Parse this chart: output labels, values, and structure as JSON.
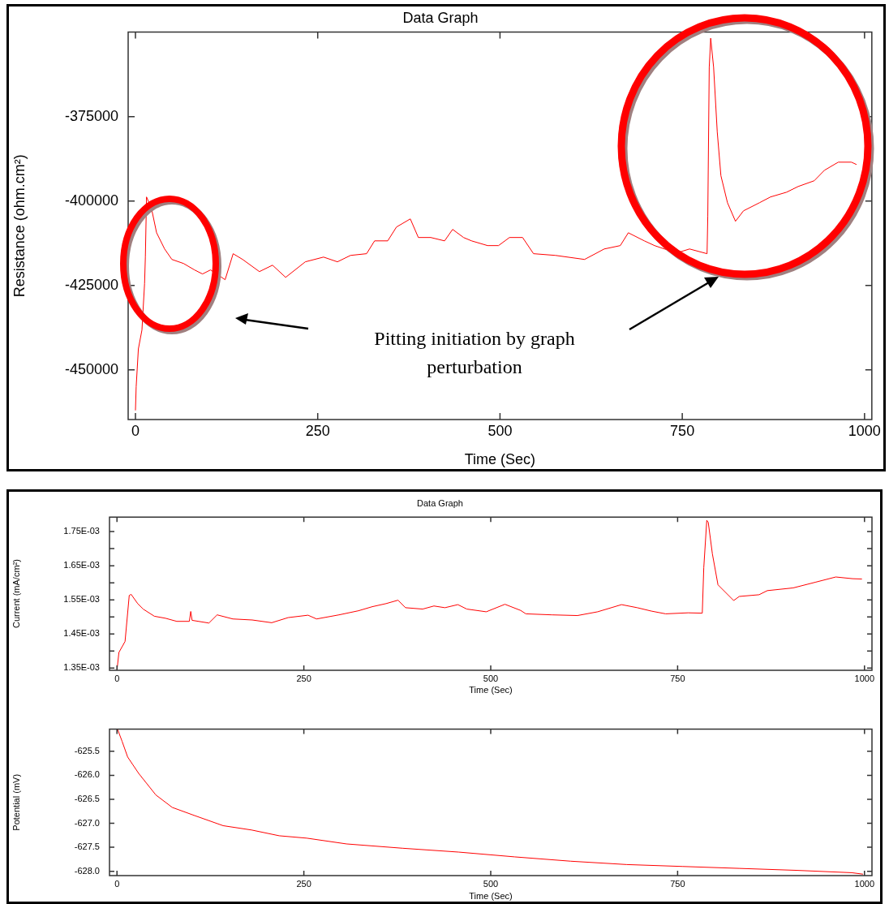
{
  "chart_data": [
    {
      "type": "line",
      "title": "Data Graph",
      "xlabel": "Time (Sec)",
      "ylabel": "Resistance (ohm.cm²)",
      "color": "#ff0000",
      "grid": false,
      "legend": false,
      "annotations": [
        "Pitting initiation by graph perturbation"
      ],
      "xlim": [
        -10,
        1010
      ],
      "xticks": [
        0,
        250,
        500,
        750,
        1000
      ],
      "ylim": [
        -464700,
        -350000
      ],
      "yticks": [
        -450000,
        -425000,
        -400000,
        -375000
      ],
      "x": [
        0,
        1,
        4,
        8.9,
        12.5,
        13.6,
        15.2,
        22,
        29,
        40,
        50,
        66,
        81,
        92,
        103,
        123,
        134,
        147,
        170,
        188,
        206,
        233,
        258,
        277,
        295,
        317,
        328,
        346,
        358,
        377,
        388,
        405,
        424,
        435,
        450,
        461,
        483,
        498,
        513,
        531,
        546,
        576,
        616,
        643,
        665,
        676,
        698,
        712,
        742,
        760,
        784,
        785,
        787,
        789,
        793,
        798,
        803,
        812,
        823,
        834,
        856,
        871,
        893,
        909,
        931,
        945,
        964,
        982,
        989
      ],
      "values": [
        -462000,
        -455000,
        -443800,
        -438200,
        -424500,
        -416600,
        -398800,
        -402200,
        -409400,
        -414200,
        -417300,
        -418500,
        -420400,
        -421600,
        -420400,
        -423300,
        -415600,
        -417300,
        -420900,
        -419000,
        -422600,
        -418000,
        -416600,
        -418000,
        -416100,
        -415600,
        -411800,
        -411800,
        -407700,
        -405300,
        -410800,
        -410800,
        -411800,
        -408400,
        -410800,
        -411800,
        -413200,
        -413200,
        -410800,
        -410800,
        -415600,
        -416100,
        -417300,
        -414200,
        -413200,
        -409400,
        -411800,
        -413200,
        -415400,
        -414200,
        -415600,
        -404600,
        -360400,
        -351800,
        -360400,
        -379600,
        -392500,
        -400500,
        -406000,
        -402900,
        -400500,
        -398800,
        -397400,
        -395700,
        -394000,
        -390900,
        -388500,
        -388500,
        -389200
      ]
    },
    {
      "type": "line",
      "title": "Data Graph",
      "xlabel": "Time (Sec)",
      "ylabel": "Current (mA/cm²)",
      "color": "#ff0000",
      "grid": false,
      "legend": false,
      "xlim": [
        -10,
        1010
      ],
      "xticks": [
        0,
        250,
        500,
        750,
        1000
      ],
      "ylim": [
        0.0013436,
        0.0017925
      ],
      "yticks": [
        {
          "value": 0.00135,
          "label": "1.35E-03"
        },
        {
          "value": 0.0014,
          "label": null
        },
        {
          "value": 0.00145,
          "label": "1.45E-03"
        },
        {
          "value": 0.0015,
          "label": null
        },
        {
          "value": 0.00155,
          "label": "1.55E-03"
        },
        {
          "value": 0.0016,
          "label": null
        },
        {
          "value": 0.00165,
          "label": "1.65E-03"
        },
        {
          "value": 0.0017,
          "label": null
        },
        {
          "value": 0.00175,
          "label": "1.75E-03"
        }
      ],
      "x": [
        0,
        2.6,
        10.8,
        16.4,
        19,
        27.7,
        35,
        50,
        65,
        80,
        96.8,
        98.7,
        100.5,
        123,
        134,
        155,
        181,
        207,
        229,
        255.6,
        267,
        297,
        323,
        341.6,
        360,
        376,
        386,
        409,
        424,
        438.7,
        456,
        468,
        494,
        519,
        540,
        547,
        582,
        616,
        643,
        675,
        696,
        715,
        734,
        764,
        783,
        785,
        789,
        791,
        796.5,
        804,
        825,
        832.5,
        859,
        870,
        904.6,
        935,
        961.6,
        984,
        996.6
      ],
      "values": [
        0.001344,
        0.001396,
        0.001428,
        0.001563,
        0.001566,
        0.001539,
        0.001523,
        0.001502,
        0.001496,
        0.001487,
        0.001487,
        0.001516,
        0.00149,
        0.001482,
        0.001506,
        0.001494,
        0.001491,
        0.001483,
        0.001498,
        0.001505,
        0.001494,
        0.001506,
        0.001518,
        0.00153,
        0.001539,
        0.001549,
        0.001527,
        0.001523,
        0.001532,
        0.001527,
        0.001536,
        0.001523,
        0.001515,
        0.001537,
        0.001519,
        0.001509,
        0.001506,
        0.001504,
        0.001515,
        0.001536,
        0.001527,
        0.001517,
        0.001509,
        0.001512,
        0.001511,
        0.001644,
        0.001783,
        0.001777,
        0.001685,
        0.001594,
        0.001548,
        0.00156,
        0.001565,
        0.001577,
        0.001585,
        0.001602,
        0.001617,
        0.001612,
        0.001611
      ]
    },
    {
      "type": "line",
      "xlabel": "Time (Sec)",
      "ylabel": "Potential (mV)",
      "color": "#ff0000",
      "grid": false,
      "legend": false,
      "xlim": [
        -10,
        1010
      ],
      "xticks": [
        0,
        250,
        500,
        750,
        1000
      ],
      "ylim": [
        -628.09,
        -625.04
      ],
      "yticks": [
        {
          "value": -628,
          "label": "-628.0"
        },
        -627.5,
        {
          "value": -627,
          "label": "-627.0"
        },
        -626.5,
        {
          "value": -626,
          "label": "-626.0"
        },
        -625.5
      ],
      "x": [
        0.75,
        6.8,
        14.3,
        29,
        52,
        74,
        104,
        142,
        180,
        217,
        254,
        307,
        382,
        457,
        532,
        607,
        682,
        757,
        833,
        908,
        983,
        998
      ],
      "values": [
        -625.04,
        -625.29,
        -625.62,
        -625.96,
        -626.41,
        -626.67,
        -626.84,
        -627.05,
        -627.14,
        -627.26,
        -627.31,
        -627.43,
        -627.52,
        -627.6,
        -627.7,
        -627.79,
        -627.86,
        -627.9,
        -627.94,
        -627.98,
        -628.03,
        -628.06
      ]
    }
  ]
}
